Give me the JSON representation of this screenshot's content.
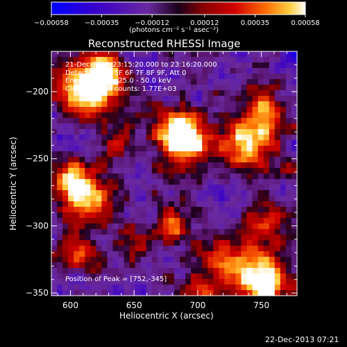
{
  "chart_data": {
    "type": "heatmap",
    "title": "Reconstructed RHESSI Image",
    "xlabel": "Heliocentric X (arcsec)",
    "ylabel": "Heliocentric Y (arcsec)",
    "xlim": [
      585,
      778
    ],
    "ylim": [
      -352,
      -170
    ],
    "x_ticks": [
      600,
      650,
      700,
      750
    ],
    "y_ticks": [
      -200,
      -250,
      -300,
      -350
    ],
    "colorbar": {
      "range": [
        -0.00058,
        0.00058
      ],
      "tick_labels": [
        "-0.00058",
        "-0.00035",
        "-0.00012",
        "0.00012",
        "0.00035",
        "0.00058"
      ],
      "units": "(photons cm⁻² s⁻¹ asec⁻²)"
    },
    "info_lines": [
      "21-Dec-2013 23:15:20.000 to 23:16:20.000",
      "Detectors: 3F 5F 6F 7F 8F 9F, Att 0",
      "Energy Range: 25.0 - 50.0 keV",
      "Clean     Total counts: 1.77E+03"
    ],
    "peak_label": "Position of Peak = [752,-345]",
    "peak": {
      "x": 752,
      "y": -345
    },
    "hotspots": [
      {
        "x": 612,
        "y": -196,
        "strength": 0.95,
        "radius": 16
      },
      {
        "x": 628,
        "y": -188,
        "strength": 0.6,
        "radius": 10
      },
      {
        "x": 612,
        "y": -278,
        "strength": 0.8,
        "radius": 14
      },
      {
        "x": 598,
        "y": -262,
        "strength": 0.55,
        "radius": 9
      },
      {
        "x": 683,
        "y": -226,
        "strength": 0.65,
        "radius": 12
      },
      {
        "x": 690,
        "y": -240,
        "strength": 0.9,
        "radius": 13
      },
      {
        "x": 678,
        "y": -300,
        "strength": 0.6,
        "radius": 10
      },
      {
        "x": 738,
        "y": -237,
        "strength": 0.8,
        "radius": 15
      },
      {
        "x": 752,
        "y": -210,
        "strength": 0.55,
        "radius": 12
      },
      {
        "x": 757,
        "y": -300,
        "strength": 0.55,
        "radius": 12
      },
      {
        "x": 752,
        "y": -345,
        "strength": 1.0,
        "radius": 14
      },
      {
        "x": 725,
        "y": -325,
        "strength": 0.6,
        "radius": 14
      },
      {
        "x": 650,
        "y": -312,
        "strength": 0.45,
        "radius": 10
      },
      {
        "x": 606,
        "y": -320,
        "strength": 0.45,
        "radius": 11
      },
      {
        "x": 640,
        "y": -238,
        "strength": 0.4,
        "radius": 9
      },
      {
        "x": 700,
        "y": -345,
        "strength": 0.4,
        "radius": 10
      },
      {
        "x": 770,
        "y": -255,
        "strength": 0.4,
        "radius": 8
      }
    ]
  },
  "timestamp": "22-Dec-2013 07:21"
}
